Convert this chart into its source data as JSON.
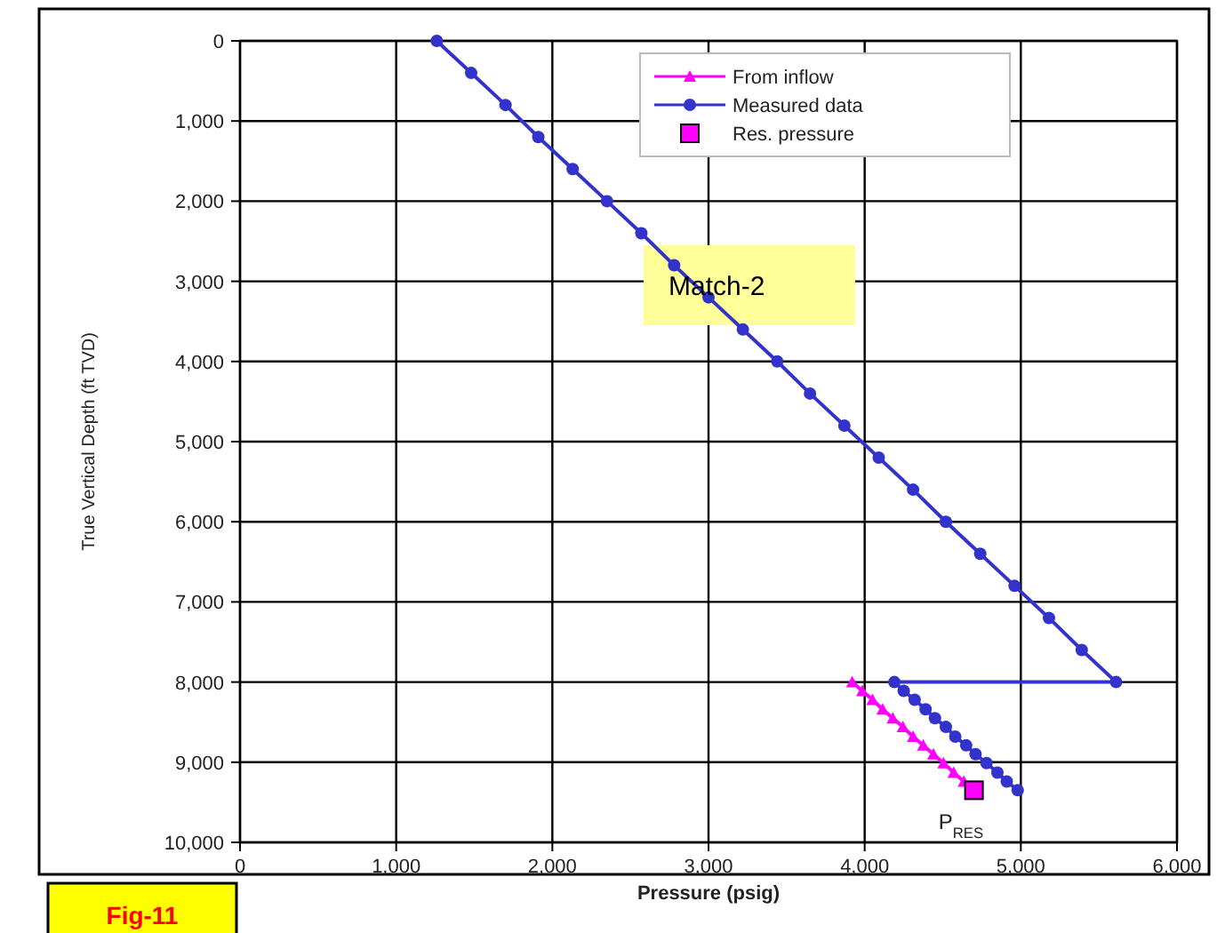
{
  "chart_data": {
    "type": "line",
    "xlabel": "Pressure (psig)",
    "ylabel": "True Vertical Depth (ft TVD)",
    "xlim": [
      0,
      6000
    ],
    "ylim": [
      10000,
      0
    ],
    "xticks": [
      0,
      {
        "value": 1000,
        "label": "1,000"
      },
      {
        "value": 2000,
        "label": "2,000"
      },
      {
        "value": 3000,
        "label": "3,000"
      },
      {
        "value": 4000,
        "label": "4,000"
      },
      {
        "value": 5000,
        "label": "5,000"
      },
      {
        "value": 6000,
        "label": "6,000"
      }
    ],
    "yticks": [
      0,
      {
        "value": 1000,
        "label": "1,000"
      },
      {
        "value": 2000,
        "label": "2,000"
      },
      {
        "value": 3000,
        "label": "3,000"
      },
      {
        "value": 4000,
        "label": "4,000"
      },
      {
        "value": 5000,
        "label": "5,000"
      },
      {
        "value": 6000,
        "label": "6,000"
      },
      {
        "value": 7000,
        "label": "7,000"
      },
      {
        "value": 8000,
        "label": "8,000"
      },
      {
        "value": 9000,
        "label": "9,000"
      },
      {
        "value": 10000,
        "label": "10,000"
      }
    ],
    "grid": true,
    "legend": "top right",
    "series": [
      {
        "name": "From inflow",
        "color": "#ff00ff",
        "marker": "triangle",
        "x": [
          3920,
          3985,
          4050,
          4115,
          4180,
          4245,
          4310,
          4375,
          4440,
          4505,
          4570,
          4635,
          4700
        ],
        "values": [
          8000,
          8110,
          8220,
          8340,
          8450,
          8560,
          8680,
          8790,
          8900,
          9010,
          9130,
          9240,
          9350
        ]
      },
      {
        "name": "Measured data",
        "color": "#3333cc",
        "marker": "circle",
        "x": [
          1260,
          1480,
          1700,
          1910,
          2130,
          2350,
          2570,
          2780,
          3000,
          3220,
          3440,
          3650,
          3870,
          4090,
          4310,
          4520,
          4740,
          4960,
          5180,
          5390,
          5610,
          4190,
          4250,
          4320,
          4390,
          4450,
          4520,
          4580,
          4650,
          4710,
          4780,
          4850,
          4910,
          4980
        ],
        "values": [
          0,
          400,
          800,
          1200,
          1600,
          2000,
          2400,
          2800,
          3200,
          3600,
          4000,
          4400,
          4800,
          5200,
          5600,
          6000,
          6400,
          6800,
          7200,
          7600,
          8000,
          8000,
          8110,
          8220,
          8340,
          8450,
          8560,
          8680,
          8790,
          8900,
          9010,
          9130,
          9240,
          9350
        ]
      },
      {
        "name": "Res. pressure",
        "type": "scatter",
        "color": "#ff00ff",
        "marker": "square",
        "x": [
          4700
        ],
        "values": [
          9350
        ]
      }
    ],
    "annotations": [
      {
        "text": "P$_{RES}$",
        "x": 4700,
        "y": 9350
      },
      "Match-2",
      "Fig-11"
    ]
  }
}
